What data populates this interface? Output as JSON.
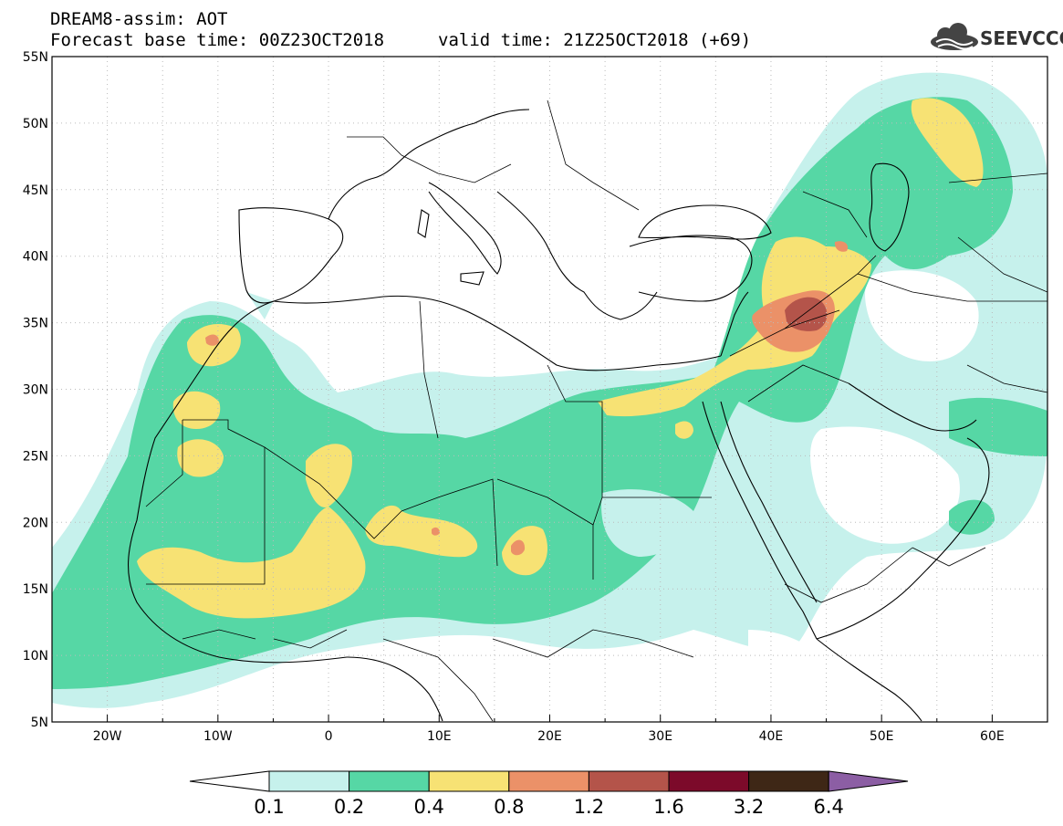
{
  "header": {
    "line1": "DREAM8-assim: AOT",
    "line2": "Forecast base time: 00Z23OCT2018",
    "valid": "valid time: 21Z25OCT2018 (+69)"
  },
  "logo": {
    "text": "SEEVCCC",
    "icon": "cloud-icon"
  },
  "map": {
    "lon_min": -25,
    "lon_max": 65,
    "lat_min": 5,
    "lat_max": 55,
    "lat_labels": [
      "5N",
      "10N",
      "15N",
      "20N",
      "25N",
      "30N",
      "35N",
      "40N",
      "45N",
      "50N",
      "55N"
    ],
    "lat_values": [
      5,
      10,
      15,
      20,
      25,
      30,
      35,
      40,
      45,
      50,
      55
    ],
    "lon_labels": [
      "20W",
      "10W",
      "0",
      "10E",
      "20E",
      "30E",
      "40E",
      "50E",
      "60E"
    ],
    "lon_values": [
      -20,
      -10,
      0,
      10,
      20,
      30,
      40,
      50,
      60
    ]
  },
  "colorbar": {
    "labels": [
      "0.1",
      "0.2",
      "0.4",
      "0.8",
      "1.2",
      "1.6",
      "3.2",
      "6.4"
    ],
    "colors": [
      "#ffffff",
      "#c6f1ec",
      "#56d7a5",
      "#f7e274",
      "#eb9168",
      "#b4544a",
      "#7c0a2a",
      "#3e2716",
      "#8c5ea4"
    ]
  }
}
